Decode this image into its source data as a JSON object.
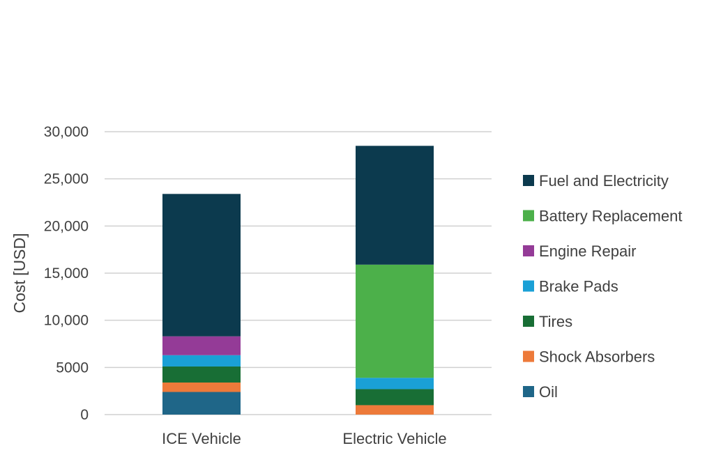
{
  "chart_data": {
    "type": "stacked-bar",
    "title": "",
    "xlabel": "",
    "ylabel": "Cost [USD]",
    "ylim": [
      0,
      30000
    ],
    "yticks": [
      0,
      5000,
      10000,
      15000,
      20000,
      25000,
      30000
    ],
    "ytick_labels": [
      "0",
      "5000",
      "10,000",
      "15,000",
      "20,000",
      "25,000",
      "30,000"
    ],
    "categories": [
      "ICE Vehicle",
      "Electric Vehicle"
    ],
    "series": [
      {
        "name": "Oil",
        "color": "#1f6688",
        "values": [
          2400,
          0
        ]
      },
      {
        "name": "Shock Absorbers",
        "color": "#ed7a3a",
        "values": [
          1000,
          1000
        ]
      },
      {
        "name": "Tires",
        "color": "#186e35",
        "values": [
          1700,
          1700
        ]
      },
      {
        "name": "Brake Pads",
        "color": "#1aa0d6",
        "values": [
          1200,
          1200
        ]
      },
      {
        "name": "Engine Repair",
        "color": "#943b97",
        "values": [
          2000,
          0
        ]
      },
      {
        "name": "Battery Replacement",
        "color": "#4cb04a",
        "values": [
          0,
          12000
        ]
      },
      {
        "name": "Fuel and Electricity",
        "color": "#0c3a4e",
        "values": [
          15100,
          12600
        ]
      }
    ],
    "legend_position": "right",
    "grid": true
  }
}
